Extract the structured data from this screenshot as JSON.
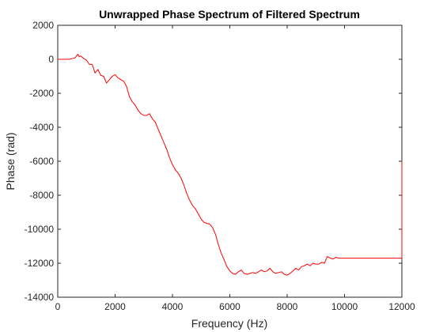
{
  "chart_data": {
    "type": "line",
    "title": "Unwrapped Phase Spectrum of Filtered Spectrum",
    "xlabel": "Frequency (Hz)",
    "ylabel": "Phase (rad)",
    "xlim": [
      0,
      12000
    ],
    "ylim": [
      -14000,
      2000
    ],
    "xticks": [
      0,
      2000,
      4000,
      6000,
      8000,
      10000,
      12000
    ],
    "yticks": [
      2000,
      0,
      -2000,
      -4000,
      -6000,
      -8000,
      -10000,
      -12000,
      -14000
    ],
    "grid": false,
    "line_color": "#ff0000",
    "series": [
      {
        "x": [
          0,
          400,
          600,
          700,
          750,
          800,
          900,
          1000,
          1100,
          1200,
          1300,
          1400,
          1500,
          1600,
          1700,
          1800,
          1900,
          2000,
          2100,
          2200,
          2300,
          2400,
          2500,
          2600,
          2700,
          2800,
          2900,
          3000,
          3100,
          3200,
          3300,
          3400,
          3500,
          3600,
          3700,
          3800,
          3900,
          4000,
          4100,
          4200,
          4300,
          4400,
          4500,
          4600,
          4700,
          4800,
          4900,
          5000,
          5100,
          5200,
          5300,
          5400,
          5500,
          5600,
          5700,
          5800,
          5900,
          6000,
          6100,
          6200,
          6300,
          6400,
          6500,
          6600,
          6700,
          6800,
          6900,
          7000,
          7100,
          7200,
          7300,
          7400,
          7500,
          7600,
          7700,
          7800,
          7900,
          8000,
          8100,
          8200,
          8300,
          8400,
          8500,
          8600,
          8700,
          8800,
          8900,
          9000,
          9100,
          9200,
          9300,
          9400,
          9500,
          9600,
          9700,
          9800,
          10000,
          10500,
          11000,
          11500,
          11990,
          12000,
          12000
        ],
        "y": [
          0,
          0,
          80,
          300,
          150,
          200,
          50,
          -50,
          -300,
          -300,
          -800,
          -600,
          -950,
          -1000,
          -1400,
          -1200,
          -1000,
          -900,
          -1100,
          -1200,
          -1300,
          -1600,
          -2200,
          -2500,
          -2700,
          -3000,
          -3200,
          -3300,
          -3300,
          -3200,
          -3500,
          -3700,
          -4100,
          -4500,
          -4900,
          -5300,
          -5800,
          -6200,
          -6500,
          -6700,
          -7000,
          -7400,
          -7900,
          -8300,
          -8600,
          -8800,
          -9100,
          -9400,
          -9600,
          -9650,
          -9700,
          -9900,
          -10300,
          -10900,
          -11400,
          -11800,
          -12200,
          -12450,
          -12600,
          -12650,
          -12500,
          -12400,
          -12600,
          -12650,
          -12600,
          -12550,
          -12600,
          -12500,
          -12400,
          -12500,
          -12450,
          -12300,
          -12500,
          -12600,
          -12550,
          -12500,
          -12650,
          -12700,
          -12600,
          -12450,
          -12300,
          -12400,
          -12200,
          -12150,
          -12050,
          -12150,
          -12000,
          -12050,
          -12050,
          -11950,
          -12000,
          -11600,
          -11700,
          -11750,
          -11650,
          -11700,
          -11700,
          -11700,
          -11700,
          -11700,
          -11700,
          -11700,
          -6000
        ]
      }
    ]
  }
}
